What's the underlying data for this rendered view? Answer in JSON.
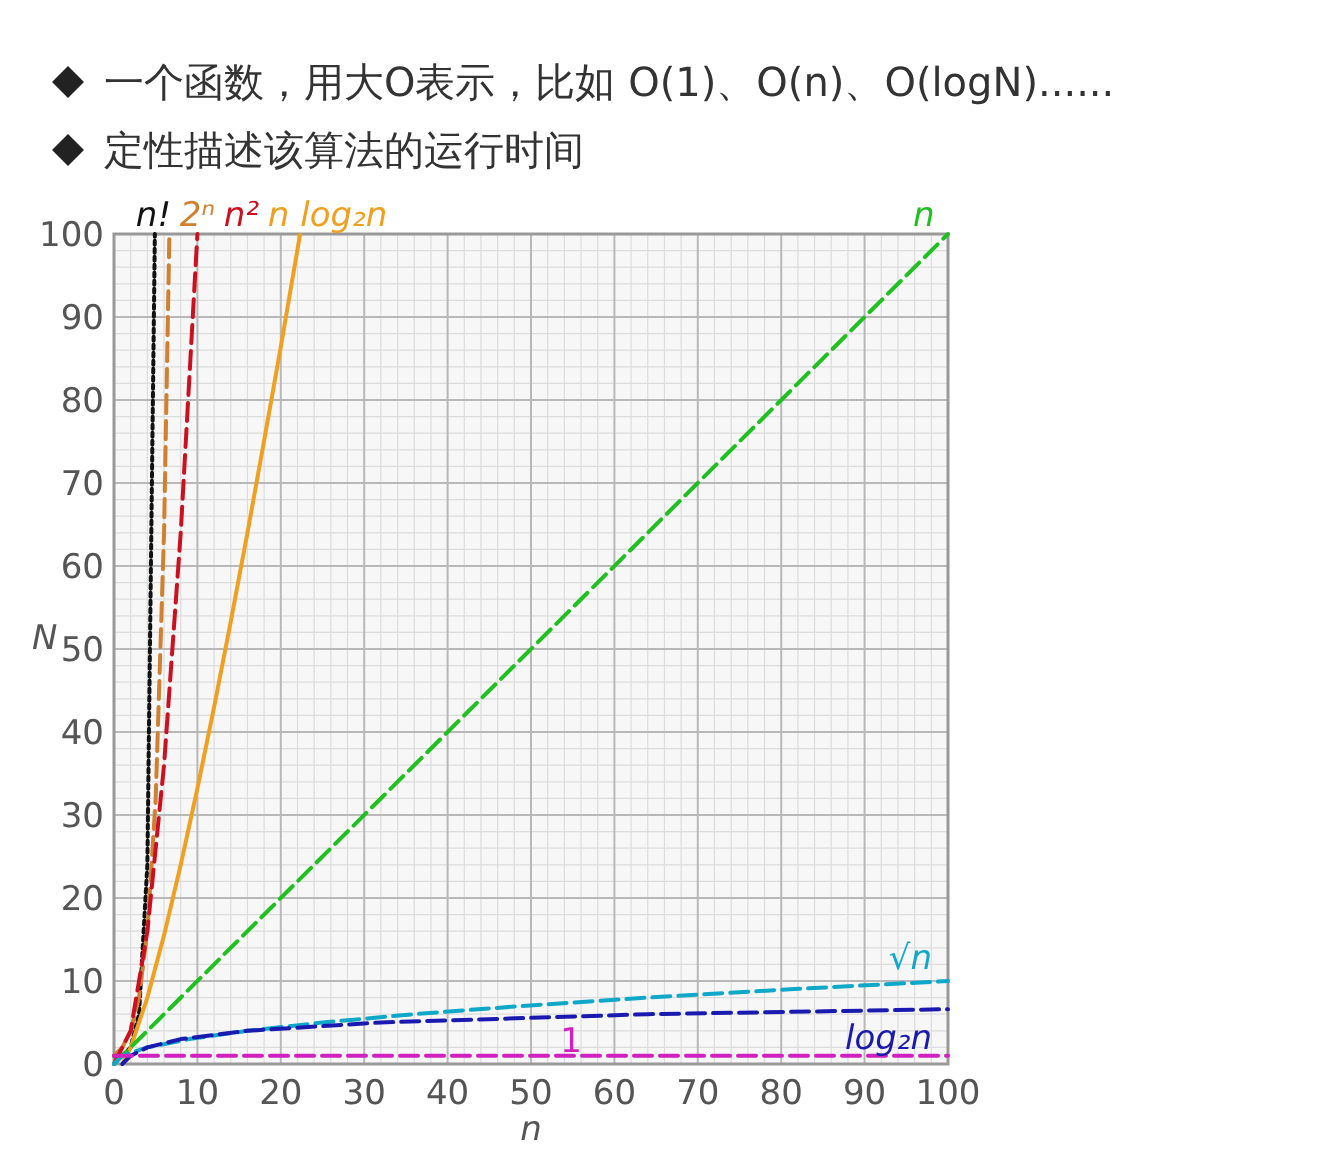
{
  "chart_data": {
    "type": "line",
    "title": "一个函数，用大O表示，比如 O(1)、O(n)、O(logN)......",
    "subtitle": "定性描述该算法的运行时间",
    "xlabel": "n",
    "ylabel": "N",
    "xlim": [
      0,
      100
    ],
    "ylim": [
      0,
      100
    ],
    "xticks": [
      0,
      10,
      20,
      30,
      40,
      50,
      60,
      70,
      80,
      90,
      100
    ],
    "yticks": [
      0,
      10,
      20,
      30,
      40,
      50,
      60,
      70,
      80,
      90,
      100
    ],
    "grid": true,
    "series": [
      {
        "name": "n!",
        "color": "#111111",
        "line_style": "dotted",
        "x": [
          0,
          1,
          2,
          3,
          4,
          4.9
        ],
        "values": [
          1,
          1,
          2,
          6,
          24,
          100
        ]
      },
      {
        "name": "2ⁿ",
        "color": "#d08030",
        "line_style": "dashed",
        "x": [
          0,
          1,
          2,
          3,
          4,
          5,
          6,
          6.64
        ],
        "values": [
          1,
          2,
          4,
          8,
          16,
          32,
          64,
          100
        ]
      },
      {
        "name": "n²",
        "color": "#cc1020",
        "line_style": "dashed",
        "x": [
          0,
          2,
          4,
          6,
          8,
          10
        ],
        "values": [
          0,
          4,
          16,
          36,
          64,
          100
        ]
      },
      {
        "name": "n log₂n",
        "color": "#f0a020",
        "line_style": "solid",
        "x": [
          1,
          2,
          4,
          6,
          8,
          10,
          12,
          14,
          16,
          18,
          20,
          22.3
        ],
        "values": [
          0,
          2,
          8,
          15.5,
          24,
          33.2,
          43,
          53.3,
          64,
          75.1,
          86.4,
          99.9
        ]
      },
      {
        "name": "n",
        "color": "#20c020",
        "line_style": "dashed",
        "x": [
          0,
          100
        ],
        "values": [
          0,
          100
        ]
      },
      {
        "name": "√n",
        "color": "#10a8c8",
        "line_style": "dashed",
        "x": [
          0,
          1,
          4,
          9,
          16,
          25,
          36,
          49,
          64,
          81,
          100
        ],
        "values": [
          0,
          1,
          2,
          3,
          4,
          5,
          6,
          7,
          8,
          9,
          10
        ]
      },
      {
        "name": "log₂n",
        "color": "#1a1ab0",
        "line_style": "dashed",
        "x": [
          1,
          2,
          4,
          8,
          16,
          32,
          64,
          100
        ],
        "values": [
          0,
          1,
          2,
          3,
          4,
          5,
          6,
          6.6
        ]
      },
      {
        "name": "1",
        "color": "#d020c0",
        "line_style": "dashed",
        "x": [
          0,
          100
        ],
        "values": [
          1,
          1
        ]
      }
    ]
  }
}
